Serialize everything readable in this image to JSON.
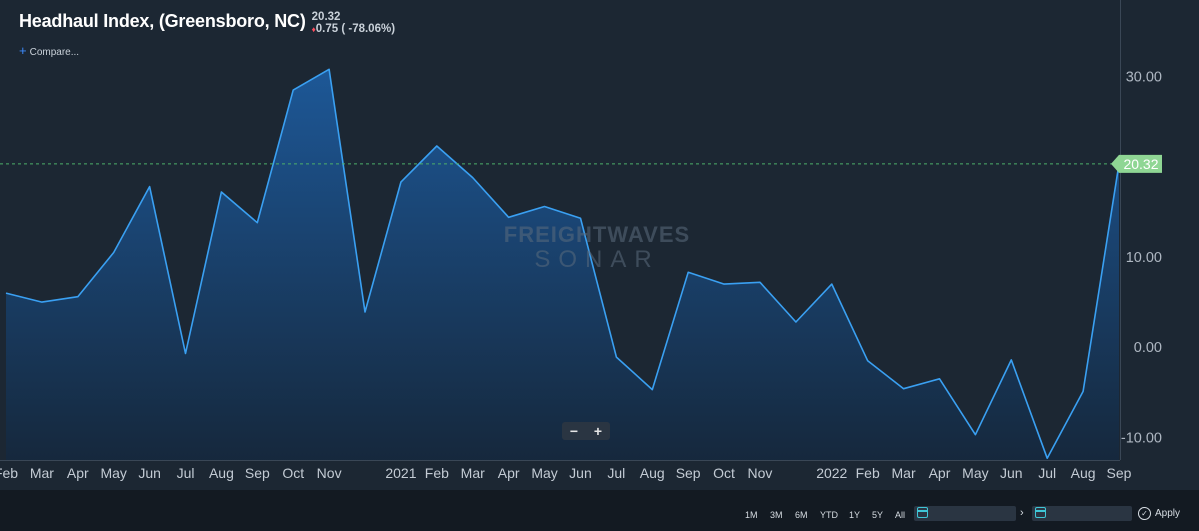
{
  "header": {
    "title": "Headhaul Index, (Greensboro, NC)",
    "last_value": "20.32",
    "change_arrow": "♦",
    "change": "0.75",
    "change_pct": "( -78.06%)",
    "compare_label": "Compare..."
  },
  "watermark": {
    "line1": "FREIGHTWAVES",
    "line2": "SONAR"
  },
  "zoom": {
    "minus": "−",
    "plus": "+"
  },
  "ranges": [
    "1M",
    "3M",
    "6M",
    "YTD",
    "1Y",
    "5Y",
    "All"
  ],
  "date_arrow": "›",
  "apply_label": "Apply",
  "colors": {
    "line": "#3aa0f2",
    "area_top": "#1d5a9c",
    "area_bottom": "#15283d",
    "last_value_tag": "#8fd694",
    "reference_line": "#4caf6a"
  },
  "chart_data": {
    "type": "area",
    "title": "Headhaul Index, (Greensboro, NC)",
    "xlabel": "",
    "ylabel": "",
    "ylim": [
      -12.5,
      37.6
    ],
    "y_ticks": [
      30,
      10,
      0,
      -10
    ],
    "y_tick_labels": [
      "30.00",
      "10.00",
      "0.00",
      "-10.00"
    ],
    "grid": false,
    "last_value": 20.32,
    "x_labels": [
      "Feb",
      "Mar",
      "Apr",
      "May",
      "Jun",
      "Jul",
      "Aug",
      "Sep",
      "Oct",
      "Nov",
      "2021",
      "Feb",
      "Mar",
      "Apr",
      "May",
      "Jun",
      "Jul",
      "Aug",
      "Sep",
      "Oct",
      "Nov",
      "2022",
      "Feb",
      "Mar",
      "Apr",
      "May",
      "Jun",
      "Jul",
      "Aug",
      "Sep"
    ],
    "series": [
      {
        "x": [
          "2020-02",
          "2020-03",
          "2020-04",
          "2020-05",
          "2020-06",
          "2020-07",
          "2020-08",
          "2020-09",
          "2020-10",
          "2020-11",
          "2020-12",
          "2021-01",
          "2021-02",
          "2021-03",
          "2021-04",
          "2021-05",
          "2021-06",
          "2021-07",
          "2021-08",
          "2021-09",
          "2021-10",
          "2021-11",
          "2021-12",
          "2022-01",
          "2022-02",
          "2022-03",
          "2022-04",
          "2022-05",
          "2022-06",
          "2022-07",
          "2022-08",
          "2022-09"
        ],
        "values": [
          6.0,
          5.0,
          5.6,
          10.5,
          17.8,
          -0.7,
          17.2,
          13.8,
          28.5,
          30.8,
          3.9,
          18.3,
          22.3,
          18.8,
          14.4,
          15.6,
          14.3,
          -1.1,
          -4.7,
          8.3,
          7.0,
          7.2,
          2.8,
          7.0,
          -1.5,
          -4.6,
          -3.5,
          -9.7,
          -1.4,
          -12.3,
          -4.9,
          20.32
        ]
      }
    ]
  }
}
